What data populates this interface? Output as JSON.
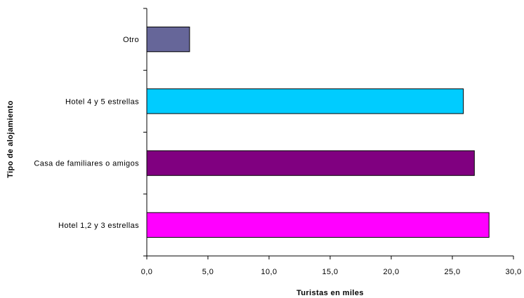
{
  "chart_data": {
    "type": "bar",
    "orientation": "horizontal",
    "title": "",
    "xlabel": "Turistas en miles",
    "ylabel": "Tipo de alojamiento",
    "xlim": [
      0,
      30
    ],
    "xticks": [
      0,
      5,
      10,
      15,
      20,
      25,
      30
    ],
    "xtick_labels": [
      "0,0",
      "5,0",
      "10,0",
      "15,0",
      "20,0",
      "25,0",
      "30,0"
    ],
    "grid": false,
    "legend": "none",
    "categories": [
      "Otro",
      "Hotel 4 y 5 estrellas",
      "Casa de familiares o amigos",
      "Hotel 1,2 y 3 estrellas"
    ],
    "values": [
      3.5,
      25.9,
      26.8,
      28.0
    ],
    "colors": [
      "#666699",
      "#00CCFF",
      "#800080",
      "#FF00FF"
    ]
  }
}
